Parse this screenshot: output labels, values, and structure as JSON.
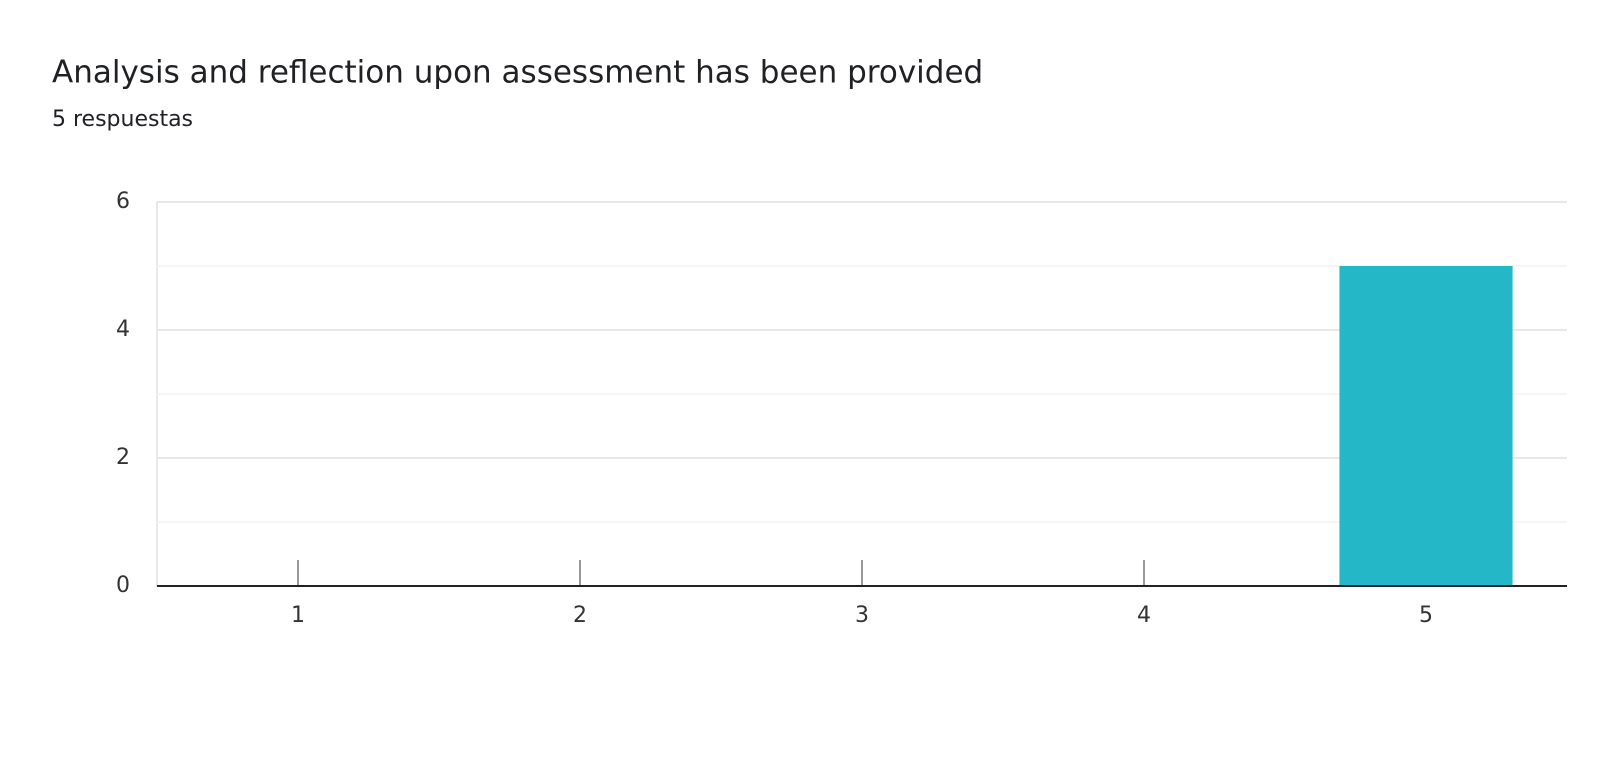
{
  "chart_data": {
    "type": "bar",
    "title": "Analysis and reflection upon assessment has been provided",
    "subtitle": "5 respuestas",
    "categories": [
      "1",
      "2",
      "3",
      "4",
      "5"
    ],
    "values": [
      0,
      0,
      0,
      0,
      5
    ],
    "color": "#24b7c7",
    "ylim": [
      0,
      6
    ],
    "yticks": [
      0,
      2,
      4,
      6
    ],
    "minor_yticks": [
      1,
      3,
      5
    ],
    "grid": true
  }
}
